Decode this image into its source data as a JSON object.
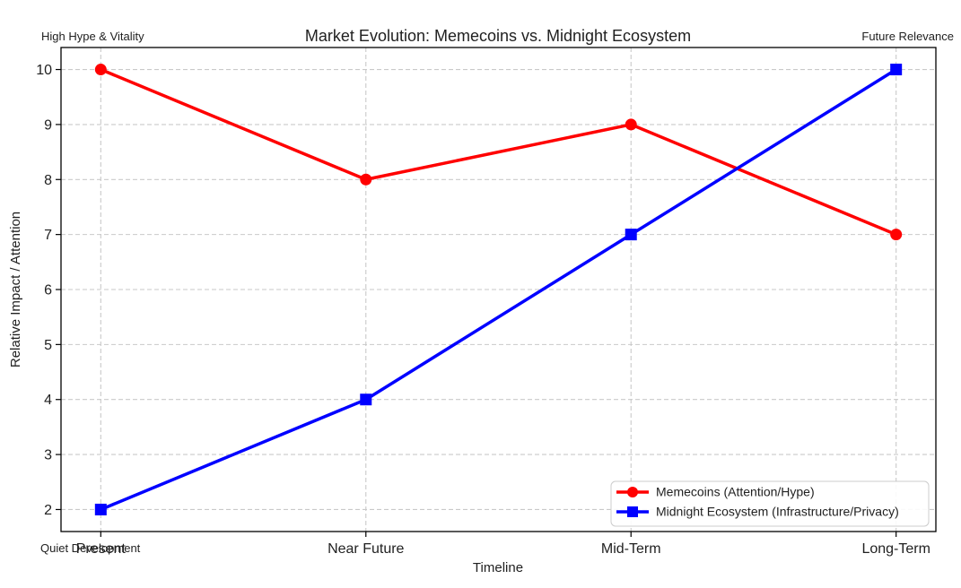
{
  "chart_data": {
    "type": "line",
    "title": "Market Evolution: Memecoins vs. Midnight Ecosystem",
    "xlabel": "Timeline",
    "ylabel": "Relative Impact / Attention",
    "categories": [
      "Present",
      "Near Future",
      "Mid-Term",
      "Long-Term"
    ],
    "series": [
      {
        "name": "Memecoins (Attention/Hype)",
        "color": "#ff0000",
        "marker": "circle",
        "values": [
          10,
          8,
          9,
          7
        ]
      },
      {
        "name": "Midnight Ecosystem (Infrastructure/Privacy)",
        "color": "#0000ff",
        "marker": "square",
        "values": [
          2,
          4,
          7,
          10
        ]
      }
    ],
    "yticks": [
      2,
      3,
      4,
      5,
      6,
      7,
      8,
      9,
      10
    ],
    "ylim": [
      1.6,
      10.4
    ],
    "xlim": [
      -0.15,
      3.15
    ],
    "grid": true,
    "grid_style": "dashed",
    "legend_position": "lower right",
    "annotations": [
      {
        "text": "High Hype & Vitality",
        "anchor_x": 0,
        "anchor_y": 10,
        "placement": "above-top-left"
      },
      {
        "text": "Future Relevance",
        "anchor_x": 3,
        "anchor_y": 10,
        "placement": "above-top-right"
      },
      {
        "text": "Quiet Development",
        "anchor_x": 0,
        "anchor_y": 2,
        "placement": "below-bottom-left"
      }
    ]
  },
  "colors": {
    "memecoins": "#ff0000",
    "midnight": "#0000ff",
    "grid": "#c9c9c9",
    "axis": "#000000",
    "text": "#212121",
    "legend_border": "#cccccc",
    "background": "#ffffff"
  }
}
